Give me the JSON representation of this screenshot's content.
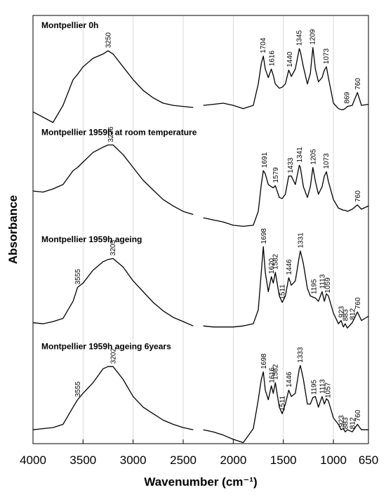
{
  "chart_data": {
    "type": "line",
    "xlabel": "Wavenumber (cm⁻¹)",
    "ylabel": "Absorbance",
    "xlim": [
      4000,
      650
    ],
    "xticks": [
      4000,
      3500,
      3000,
      2500,
      2000,
      1500,
      1000,
      650
    ],
    "ylim": [
      0,
      4
    ],
    "grid": true,
    "x": [
      4000,
      3900,
      3800,
      3700,
      3600,
      3555,
      3500,
      3400,
      3300,
      3250,
      3200,
      3100,
      3000,
      2900,
      2800,
      2700,
      2600,
      2500,
      2400,
      2350,
      2300,
      2200,
      2100,
      2000,
      1900,
      1800,
      1750,
      1720,
      1700,
      1680,
      1650,
      1620,
      1600,
      1580,
      1540,
      1511,
      1480,
      1446,
      1420,
      1380,
      1340,
      1330,
      1300,
      1260,
      1230,
      1205,
      1180,
      1150,
      1113,
      1090,
      1070,
      1050,
      1000,
      950,
      923,
      900,
      883,
      860,
      812,
      760,
      720,
      650
    ],
    "series": [
      {
        "name": "Montpellier 0h",
        "color": "#000000",
        "values": [
          3.1,
          3.05,
          3.0,
          3.16,
          3.4,
          3.45,
          3.52,
          3.6,
          3.64,
          3.67,
          3.64,
          3.52,
          3.4,
          3.3,
          3.23,
          3.18,
          3.16,
          3.15,
          3.14,
          null,
          3.16,
          3.17,
          3.18,
          3.16,
          3.13,
          3.16,
          3.36,
          3.55,
          3.62,
          3.5,
          3.42,
          3.5,
          3.44,
          3.36,
          3.32,
          3.33,
          3.36,
          3.49,
          3.43,
          3.5,
          3.69,
          3.66,
          3.52,
          3.36,
          3.46,
          3.7,
          3.5,
          3.38,
          3.42,
          3.49,
          3.52,
          3.42,
          3.18,
          3.13,
          3.12,
          3.12,
          3.13,
          3.15,
          3.16,
          3.28,
          3.16,
          3.17
        ],
        "peaks": [
          3250,
          1704,
          1616,
          1440,
          1345,
          1209,
          1073,
          869,
          760
        ]
      },
      {
        "name": "Montpellier 1959h at room temperature",
        "color": "#000000",
        "values": [
          2.36,
          2.35,
          2.38,
          2.42,
          2.55,
          2.58,
          2.63,
          2.72,
          2.77,
          2.79,
          2.79,
          2.7,
          2.58,
          2.46,
          2.37,
          2.28,
          2.22,
          2.17,
          2.14,
          null,
          2.11,
          2.09,
          2.07,
          2.04,
          2.03,
          2.04,
          2.17,
          2.42,
          2.55,
          2.52,
          2.42,
          2.4,
          2.39,
          2.41,
          2.3,
          2.29,
          2.33,
          2.5,
          2.5,
          2.42,
          2.6,
          2.58,
          2.4,
          2.3,
          2.4,
          2.58,
          2.45,
          2.33,
          2.4,
          2.5,
          2.54,
          2.45,
          2.28,
          2.2,
          2.19,
          2.18,
          2.18,
          2.17,
          2.19,
          2.23,
          2.19,
          2.22
        ],
        "peaks": [
          3226,
          1691,
          1579,
          1433,
          1341,
          1205,
          1073,
          760
        ]
      },
      {
        "name": "Montpellier 1959h ageing",
        "color": "#000000",
        "values": [
          1.13,
          1.12,
          1.14,
          1.17,
          1.33,
          1.46,
          1.5,
          1.62,
          1.7,
          1.72,
          1.73,
          1.65,
          1.52,
          1.42,
          1.32,
          1.24,
          1.18,
          1.14,
          1.1,
          null,
          1.1,
          1.09,
          1.09,
          1.09,
          1.1,
          1.12,
          1.25,
          1.6,
          1.84,
          1.6,
          1.42,
          1.56,
          1.5,
          1.6,
          1.38,
          1.32,
          1.38,
          1.55,
          1.48,
          1.52,
          1.75,
          1.8,
          1.68,
          1.45,
          1.38,
          1.37,
          1.36,
          1.33,
          1.42,
          1.33,
          1.4,
          1.38,
          1.22,
          1.12,
          1.15,
          1.09,
          1.12,
          1.08,
          1.13,
          1.23,
          1.15,
          1.19
        ],
        "peaks": [
          3555,
          3205,
          1698,
          1620,
          1582,
          1511,
          1446,
          1331,
          1195,
          1113,
          1059,
          923,
          883,
          812,
          760
        ]
      },
      {
        "name": "Montpellier 1959h ageing 6years",
        "color": "#000000",
        "values": [
          0.13,
          0.14,
          0.15,
          0.18,
          0.34,
          0.41,
          0.47,
          0.57,
          0.7,
          0.72,
          0.72,
          0.6,
          0.44,
          0.34,
          0.28,
          0.22,
          0.18,
          0.15,
          0.13,
          null,
          0.13,
          0.11,
          0.08,
          0.04,
          0.01,
          0.14,
          0.41,
          0.6,
          0.67,
          0.5,
          0.41,
          0.54,
          0.47,
          0.57,
          0.34,
          0.28,
          0.37,
          0.5,
          0.44,
          0.47,
          0.7,
          0.73,
          0.6,
          0.37,
          0.37,
          0.43,
          0.44,
          0.34,
          0.44,
          0.37,
          0.42,
          0.4,
          0.24,
          0.18,
          0.13,
          0.14,
          0.11,
          0.13,
          0.11,
          0.18,
          0.13,
          0.13
        ],
        "peaks": [
          3555,
          3202,
          1698,
          1616,
          1582,
          1511,
          1446,
          1333,
          1195,
          1113,
          1057,
          923,
          883,
          812,
          760
        ]
      }
    ]
  }
}
